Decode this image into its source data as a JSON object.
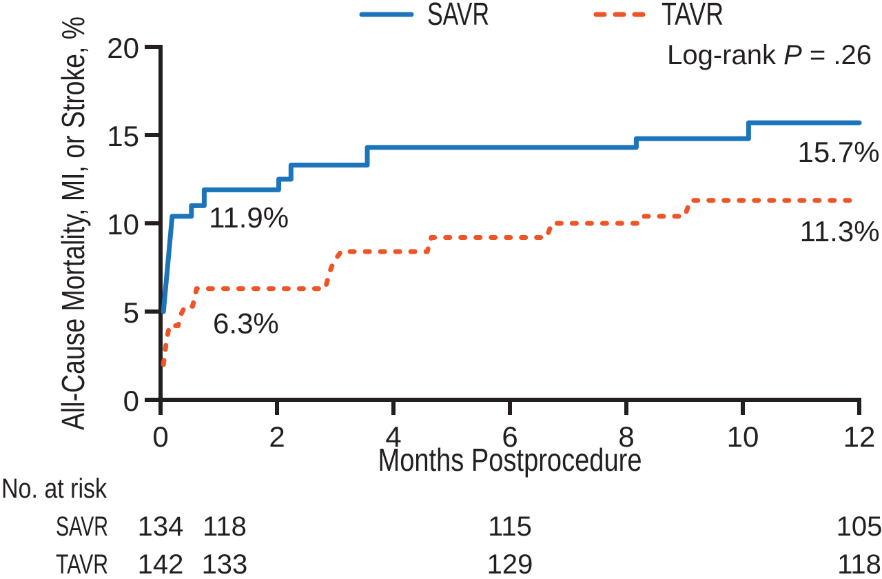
{
  "figure": {
    "background": "#ffffff",
    "text_color": "#231f20",
    "axis_color": "#231f20"
  },
  "legend": {
    "items": [
      {
        "label": "SAVR",
        "color": "#1c75bb",
        "dashed": false
      },
      {
        "label": "TAVR",
        "color": "#ee5426",
        "dashed": true
      }
    ]
  },
  "stats": {
    "logrank_prefix": "Log-rank ",
    "logrank_p": "P",
    "logrank_suffix": " = .26"
  },
  "chart_data": {
    "type": "line",
    "subtype": "kaplan-meier-step",
    "title": "",
    "xlabel": "Months Postprocedure",
    "ylabel": "All-Cause Mortality, MI, or Stroke, %",
    "xlim": [
      0,
      12
    ],
    "ylim": [
      0,
      20
    ],
    "xticks": [
      0,
      2,
      4,
      6,
      8,
      10,
      12
    ],
    "yticks": [
      0,
      5,
      10,
      15,
      20
    ],
    "grid": false,
    "legend_position": "top",
    "annotation": "Log-rank P = .26",
    "series": [
      {
        "name": "SAVR",
        "color": "#1c75bb",
        "style": "solid",
        "final_label": "15.7%",
        "points": [
          [
            0.05,
            5.0
          ],
          [
            0.2,
            10.4
          ],
          [
            0.53,
            10.4
          ],
          [
            0.53,
            11.0
          ],
          [
            0.75,
            11.0
          ],
          [
            0.75,
            11.9
          ],
          [
            2.03,
            11.9
          ],
          [
            2.03,
            12.5
          ],
          [
            2.24,
            12.5
          ],
          [
            2.24,
            13.3
          ],
          [
            3.55,
            13.3
          ],
          [
            3.55,
            14.3
          ],
          [
            8.17,
            14.3
          ],
          [
            8.17,
            14.8
          ],
          [
            10.1,
            14.8
          ],
          [
            10.1,
            15.7
          ],
          [
            12,
            15.7
          ]
        ]
      },
      {
        "name": "TAVR",
        "color": "#ee5426",
        "style": "dashed",
        "final_label": "11.3%",
        "points": [
          [
            0.05,
            2.0
          ],
          [
            0.1,
            3.3
          ],
          [
            0.15,
            4.2
          ],
          [
            0.3,
            4.2
          ],
          [
            0.36,
            4.9
          ],
          [
            0.42,
            5.3
          ],
          [
            0.55,
            5.3
          ],
          [
            0.62,
            6.3
          ],
          [
            2.83,
            6.3
          ],
          [
            2.9,
            7.2
          ],
          [
            2.97,
            7.8
          ],
          [
            3.1,
            8.4
          ],
          [
            4.58,
            8.4
          ],
          [
            4.65,
            9.2
          ],
          [
            6.63,
            9.2
          ],
          [
            6.72,
            10.0
          ],
          [
            8.2,
            10.0
          ],
          [
            8.28,
            10.4
          ],
          [
            9.0,
            10.4
          ],
          [
            9.1,
            11.3
          ],
          [
            12,
            11.3
          ]
        ]
      }
    ],
    "annotations": [
      {
        "text": "11.9%",
        "x": 0.83,
        "y": 10.4,
        "anchor": "start"
      },
      {
        "text": "6.3%",
        "x": 0.9,
        "y": 4.4,
        "anchor": "start"
      },
      {
        "text": "15.7%",
        "x": 12.35,
        "y": 14.1,
        "anchor": "end"
      },
      {
        "text": "11.3%",
        "x": 12.35,
        "y": 9.6,
        "anchor": "end"
      }
    ]
  },
  "risk_table": {
    "title": "No. at risk",
    "columns_months": [
      0,
      1.1,
      6,
      12
    ],
    "rows": [
      {
        "label": "SAVR",
        "values": [
          "134",
          "118",
          "115",
          "105"
        ]
      },
      {
        "label": "TAVR",
        "values": [
          "142",
          "133",
          "129",
          "118"
        ]
      }
    ]
  }
}
